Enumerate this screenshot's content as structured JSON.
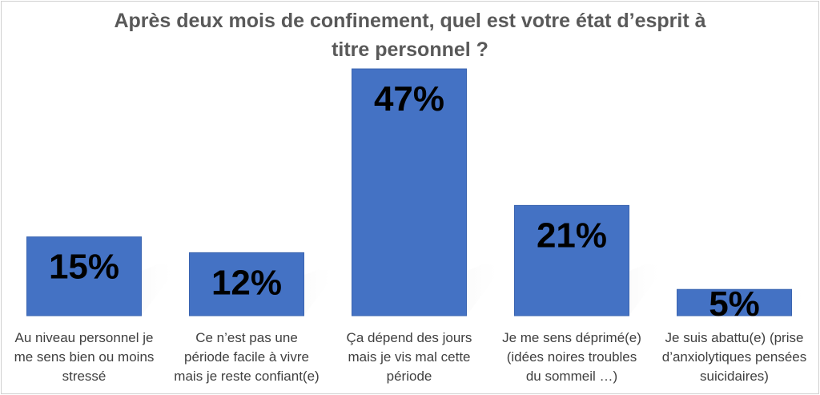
{
  "chart_data": {
    "type": "bar",
    "title_lines": [
      "Après deux mois de confinement, quel est votre état d’esprit à",
      "titre personnel ?"
    ],
    "categories": [
      [
        "Au niveau personnel je",
        "me sens bien ou moins",
        "stressé"
      ],
      [
        "Ce n’est pas une",
        "période facile à vivre",
        "mais je reste confiant(e)"
      ],
      [
        "Ça dépend des jours",
        "mais je vis mal cette",
        "période"
      ],
      [
        "Je me sens déprimé(e)",
        "(idées noires troubles",
        "du sommeil …)"
      ],
      [
        "Je suis abattu(e) (prise",
        "d’anxiolytiques pensées",
        "suicidaires)"
      ]
    ],
    "values": [
      15,
      12,
      47,
      21,
      5
    ],
    "value_labels": [
      "15%",
      "12%",
      "47%",
      "21%",
      "5%"
    ],
    "ylim": [
      0,
      47
    ],
    "grid": false,
    "legend": "none",
    "colors": {
      "bar": "#4472C4",
      "bar_edge": "#3A64B0",
      "shadow": "#bfbfbf",
      "title": "#595959",
      "label": "#404040"
    }
  }
}
